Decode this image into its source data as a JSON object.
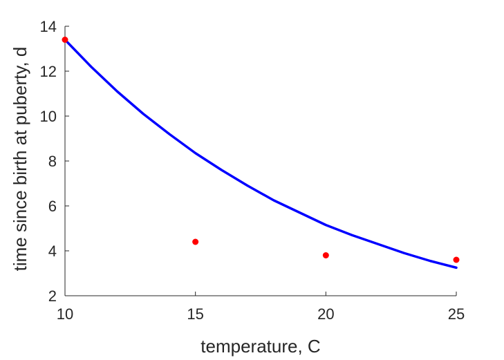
{
  "chart_data": {
    "type": "scatter",
    "xlabel": "temperature, C",
    "ylabel": "time since birth at puberty, d",
    "xlim": [
      10,
      25
    ],
    "ylim": [
      2,
      14
    ],
    "xticks": [
      10,
      15,
      20,
      25
    ],
    "yticks": [
      2,
      4,
      6,
      8,
      10,
      12,
      14
    ],
    "grid": false,
    "series": [
      {
        "kind": "scatter",
        "color": "#ff0000",
        "points": [
          {
            "x": 10,
            "y": 13.4
          },
          {
            "x": 15,
            "y": 4.4
          },
          {
            "x": 20,
            "y": 3.8
          },
          {
            "x": 25,
            "y": 3.6
          }
        ]
      },
      {
        "kind": "line",
        "color": "#0000ff",
        "x": [
          10,
          11,
          12,
          13,
          14,
          15,
          16,
          17,
          18,
          19,
          20,
          21,
          22,
          23,
          24,
          25
        ],
        "y": [
          13.4,
          12.2,
          11.1,
          10.1,
          9.2,
          8.35,
          7.6,
          6.9,
          6.25,
          5.7,
          5.15,
          4.7,
          4.3,
          3.9,
          3.55,
          3.25
        ]
      }
    ]
  }
}
